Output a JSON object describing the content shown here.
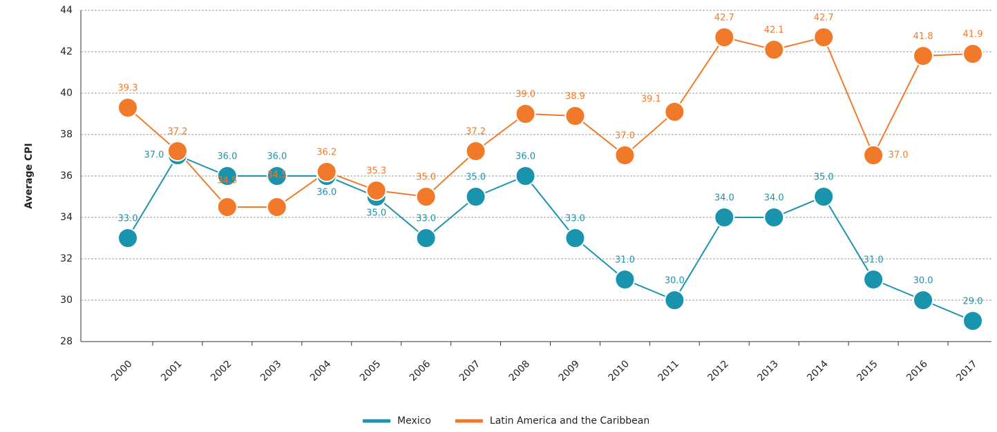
{
  "chart_data": {
    "type": "line",
    "y_label": "Average CPI",
    "categories": [
      "2000",
      "2001",
      "2002",
      "2003",
      "2004",
      "2005",
      "2006",
      "2007",
      "2008",
      "2009",
      "2010",
      "2011",
      "2012",
      "2013",
      "2014",
      "2015",
      "2016",
      "2017"
    ],
    "series": [
      {
        "name": "Mexico",
        "color": "#1a93ad",
        "values": [
          33.0,
          37.0,
          36.0,
          36.0,
          36.0,
          35.0,
          33.0,
          35.0,
          36.0,
          33.0,
          31.0,
          30.0,
          34.0,
          34.0,
          35.0,
          31.0,
          30.0,
          29.0
        ],
        "value_labels": [
          "33.0",
          "37.0",
          "36.0",
          "36.0",
          "36.0",
          "35.0",
          "33.0",
          "35.0",
          "36.0",
          "33.0",
          "31.0",
          "30.0",
          "34.0",
          "34.0",
          "35.0",
          "31.0",
          "30.0",
          "29.0"
        ]
      },
      {
        "name": "Latin America and the Caribbean",
        "color": "#f07a2a",
        "values": [
          39.3,
          37.2,
          34.5,
          34.5,
          36.2,
          35.3,
          35.0,
          37.2,
          39.0,
          38.9,
          37.0,
          39.1,
          42.7,
          42.1,
          42.7,
          37.0,
          41.8,
          41.9
        ],
        "value_labels": [
          "39.3",
          "37.2",
          "34.5",
          "34.5",
          "36.2",
          "35.3",
          "35.0",
          "37.2",
          "39.0",
          "38.9",
          "37.0",
          "39.1",
          "42.7",
          "42.1",
          "42.7",
          "37.0",
          "41.8",
          "41.9"
        ]
      }
    ],
    "ylim": [
      28,
      44
    ],
    "yticks": [
      28,
      30,
      32,
      34,
      36,
      38,
      40,
      42,
      44
    ],
    "grid": true,
    "legend": "bottom"
  }
}
